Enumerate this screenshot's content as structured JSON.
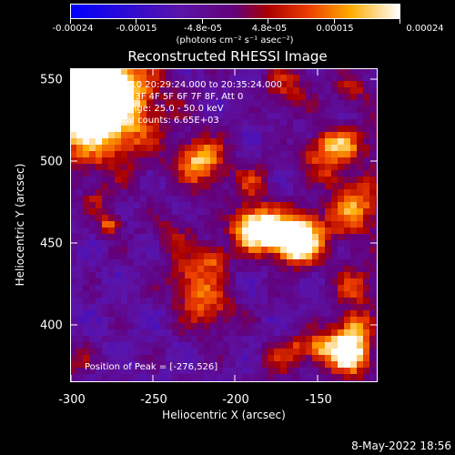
{
  "colorbar": {
    "tick_labels": [
      "-0.00024",
      "-0.00015",
      "-4.8e-05",
      "4.8e-05",
      "0.00015",
      "0.00024"
    ],
    "units": "(photons cm⁻² s⁻¹ asec⁻²)"
  },
  "title": "Reconstructed RHESSI Image",
  "info": {
    "time_range": "08-Feb-2010 20:29:24.000 to 20:35:24.000",
    "detectors": "Detectors: 3F 4F 5F 6F 7F 8F, Att 0",
    "energy": "Energy Range: 25.0 - 50.0 keV",
    "method": "Clean  Total counts: 6.65E+03",
    "peak": "Position of Peak = [-276,526]"
  },
  "axes": {
    "xlabel": "Heliocentric X (arcsec)",
    "ylabel": "Heliocentric Y (arcsec)",
    "xticks": [
      "-300",
      "-250",
      "-200",
      "-150"
    ],
    "yticks": [
      "550",
      "500",
      "450",
      "400"
    ],
    "xlim": [
      -303,
      -116
    ],
    "ylim": [
      365,
      557
    ]
  },
  "timestamp": "8-May-2022 18:56"
}
